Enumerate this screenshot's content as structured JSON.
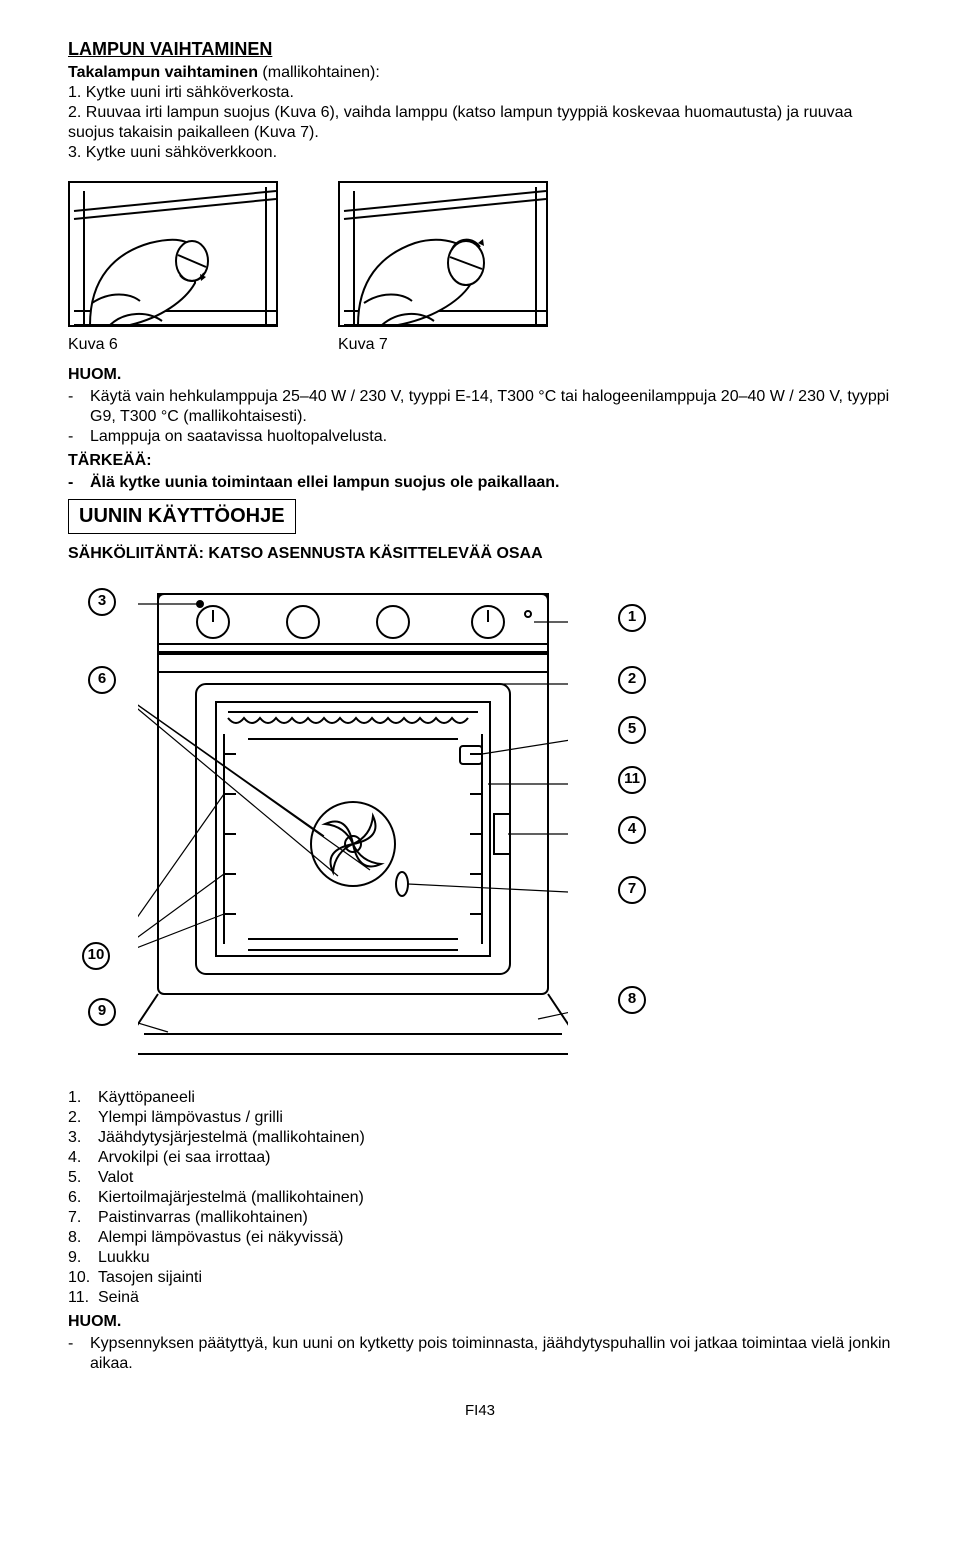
{
  "h1": "LAMPUN VAIHTAMINEN",
  "sub1": "Takalampun vaihtaminen",
  "sub1_paren": " (mallikohtainen):",
  "step1_num": "1.",
  "step1": "Kytke uuni irti sähköverkosta.",
  "step2_num": "2.",
  "step2": "Ruuvaa irti lampun suojus (Kuva 6), vaihda lamppu (katso lampun tyyppiä koskevaa huomautusta) ja ruuvaa suojus takaisin paikalleen (Kuva 7).",
  "step3_num": "3.",
  "step3": "Kytke uuni sähköverkkoon.",
  "cap6": "Kuva 6",
  "cap7": "Kuva 7",
  "huom": "HUOM.",
  "note1": "Käytä vain hehkulamppuja 25–40 W / 230 V, tyyppi E-14, T300 °C tai halogeenilamppuja 20–40 W / 230 V, tyyppi G9, T300 °C (mallikohtaisesti).",
  "note2": "Lamppuja on saatavissa huoltopalvelusta.",
  "tarkeaa": "TÄRKEÄÄ:",
  "note3": "Älä kytke uunia toimintaan ellei lampun suojus ole paikallaan.",
  "h2": "UUNIN KÄYTTÖOHJE",
  "sub2": "SÄHKÖLIITÄNTÄ: KATSO ASENNUSTA KÄSITTELEVÄÄ OSAA",
  "legend": [
    {
      "n": "1.",
      "t": "Käyttöpaneeli"
    },
    {
      "n": "2.",
      "t": "Ylempi lämpövastus / grilli"
    },
    {
      "n": "3.",
      "t": "Jäähdytysjärjestelmä (mallikohtainen)"
    },
    {
      "n": "4.",
      "t": "Arvokilpi (ei saa irrottaa)"
    },
    {
      "n": "5.",
      "t": "Valot"
    },
    {
      "n": "6.",
      "t": "Kiertoilmajärjestelmä (mallikohtainen)"
    },
    {
      "n": "7.",
      "t": "Paistinvarras (mallikohtainen)"
    },
    {
      "n": "8.",
      "t": "Alempi lämpövastus (ei näkyvissä)"
    },
    {
      "n": "9.",
      "t": "Luukku"
    },
    {
      "n": "10.",
      "t": "Tasojen sijainti"
    },
    {
      "n": "11.",
      "t": "Seinä"
    }
  ],
  "huom2": "HUOM.",
  "footnote": "Kypsennyksen päätyttyä, kun uuni on kytketty pois toiminnasta, jäähdytyspuhallin voi jatkaa toimintaa vielä jonkin aikaa.",
  "page": "FI43",
  "callouts": {
    "b1": "1",
    "b2": "2",
    "b3": "3",
    "b4": "4",
    "b5": "5",
    "b6": "6",
    "b7": "7",
    "b8": "8",
    "b9": "9",
    "b10": "10",
    "b11": "11"
  }
}
